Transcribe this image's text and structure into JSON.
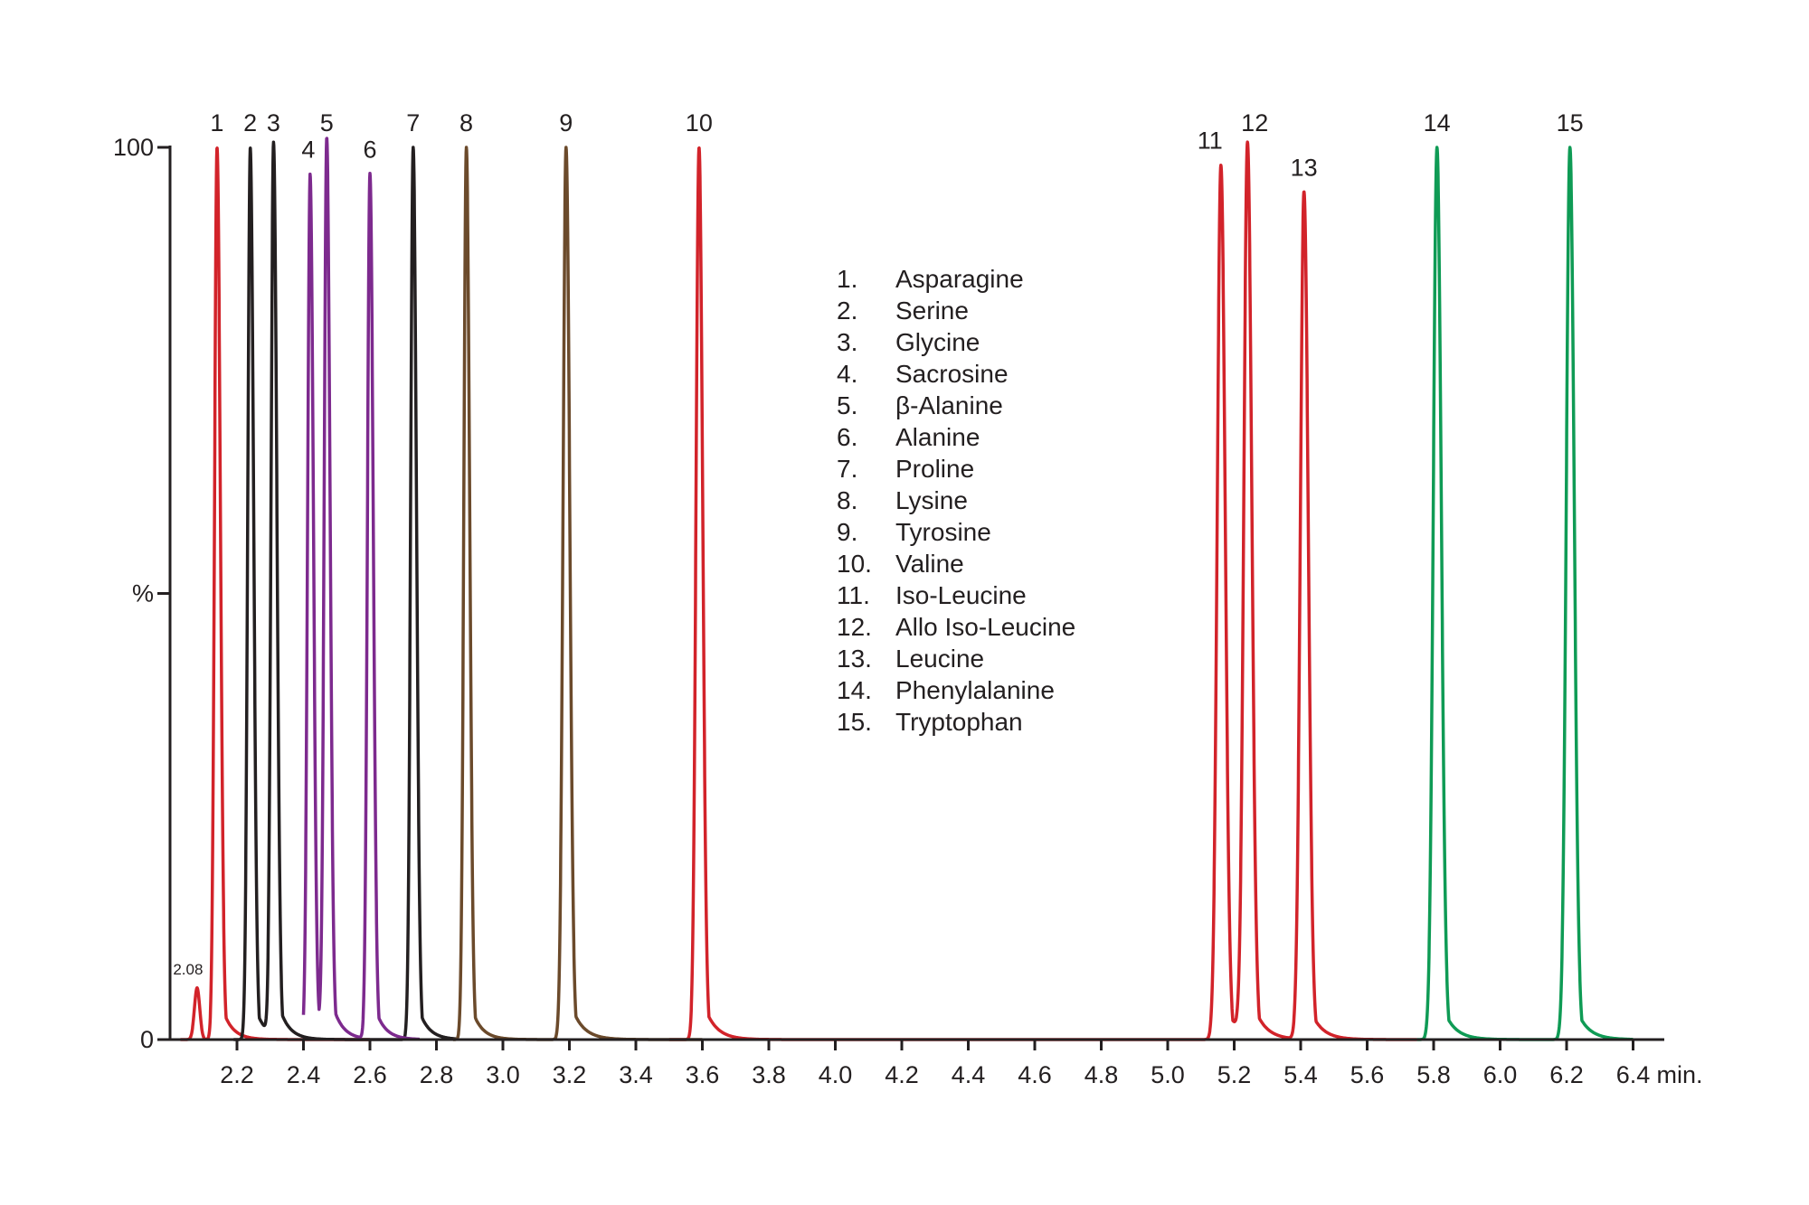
{
  "chart_data": {
    "type": "line",
    "xlabel": "min.",
    "ylabel": "%",
    "xlim": [
      2.0,
      6.5
    ],
    "ylim": [
      0,
      100
    ],
    "x_ticks": [
      "2.2",
      "2.4",
      "2.6",
      "2.8",
      "3.0",
      "3.2",
      "3.4",
      "3.6",
      "3.8",
      "4.0",
      "4.2",
      "4.4",
      "4.6",
      "4.8",
      "5.0",
      "5.2",
      "5.4",
      "5.6",
      "5.8",
      "6.0",
      "6.2",
      "6.4"
    ],
    "y_ticks": [
      {
        "value": 0,
        "label": "0"
      },
      {
        "value": 50,
        "label": "%"
      },
      {
        "value": 100,
        "label": "100"
      }
    ],
    "colors": {
      "red": "#d2232a",
      "black": "#231f20",
      "purple": "#7d2a8e",
      "brown": "#6b4a2b",
      "green": "#0f9b55"
    },
    "peaks": [
      {
        "label": "1",
        "rt": 2.14,
        "height": 100,
        "color": "#d2232a",
        "series": "red"
      },
      {
        "label": "2",
        "rt": 2.24,
        "height": 100,
        "color": "#231f20",
        "series": "black"
      },
      {
        "label": "3",
        "rt": 2.31,
        "height": 100,
        "color": "#231f20",
        "series": "black"
      },
      {
        "label": "4",
        "rt": 2.42,
        "height": 97,
        "color": "#7d2a8e",
        "series": "purple"
      },
      {
        "label": "5",
        "rt": 2.47,
        "height": 100,
        "color": "#7d2a8e",
        "series": "purple"
      },
      {
        "label": "6",
        "rt": 2.6,
        "height": 97,
        "color": "#7d2a8e",
        "series": "purple"
      },
      {
        "label": "7",
        "rt": 2.73,
        "height": 100,
        "color": "#231f20",
        "series": "black"
      },
      {
        "label": "8",
        "rt": 2.89,
        "height": 100,
        "color": "#6b4a2b",
        "series": "brown"
      },
      {
        "label": "9",
        "rt": 3.19,
        "height": 100,
        "color": "#6b4a2b",
        "series": "brown"
      },
      {
        "label": "10",
        "rt": 3.59,
        "height": 100,
        "color": "#d2232a",
        "series": "red"
      },
      {
        "label": "11",
        "rt": 5.16,
        "height": 98,
        "color": "#d2232a",
        "series": "red"
      },
      {
        "label": "12",
        "rt": 5.24,
        "height": 100,
        "color": "#d2232a",
        "series": "red"
      },
      {
        "label": "13",
        "rt": 5.41,
        "height": 95,
        "color": "#d2232a",
        "series": "red"
      },
      {
        "label": "14",
        "rt": 5.81,
        "height": 100,
        "color": "#0f9b55",
        "series": "green"
      },
      {
        "label": "15",
        "rt": 6.21,
        "height": 100,
        "color": "#0f9b55",
        "series": "green"
      }
    ],
    "minor_peaks": [
      {
        "label": "2.08",
        "rt": 2.08,
        "height": 5.8,
        "color": "#d2232a"
      }
    ],
    "legend": [
      {
        "num": "1.",
        "name": "Asparagine"
      },
      {
        "num": "2.",
        "name": "Serine"
      },
      {
        "num": "3.",
        "name": "Glycine"
      },
      {
        "num": "4.",
        "name": "Sacrosine"
      },
      {
        "num": "5.",
        "name": "β-Alanine"
      },
      {
        "num": "6.",
        "name": "Alanine"
      },
      {
        "num": "7.",
        "name": "Proline"
      },
      {
        "num": "8.",
        "name": "Lysine"
      },
      {
        "num": "9.",
        "name": "Tyrosine"
      },
      {
        "num": "10.",
        "name": "Valine"
      },
      {
        "num": "11.",
        "name": "Iso-Leucine"
      },
      {
        "num": "12.",
        "name": "Allo Iso-Leucine"
      },
      {
        "num": "13.",
        "name": "Leucine"
      },
      {
        "num": "14.",
        "name": "Phenylalanine"
      },
      {
        "num": "15.",
        "name": "Tryptophan"
      }
    ]
  }
}
